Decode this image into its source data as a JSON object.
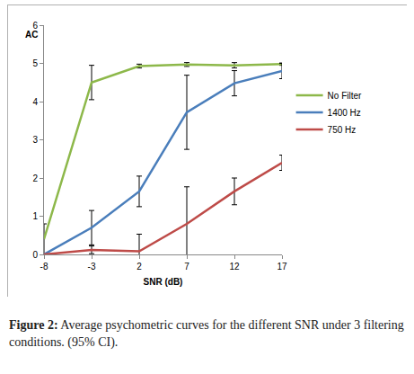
{
  "chart_data": {
    "type": "line",
    "y_label": "AC",
    "x_label": "SNR (dB)",
    "x": [
      -8,
      -3,
      2,
      7,
      12,
      17
    ],
    "xlim": [
      -8,
      17
    ],
    "xticks": [
      -8,
      -3,
      2,
      7,
      12,
      17
    ],
    "ylim": [
      0,
      6
    ],
    "yticks": [
      0,
      1,
      2,
      3,
      4,
      5,
      6
    ],
    "grid": false,
    "legend": "right",
    "series": [
      {
        "name": "No Filter",
        "color": "#8db84a",
        "values": [
          0.4,
          4.5,
          4.93,
          4.97,
          4.95,
          4.98
        ],
        "error": [
          0.4,
          0.45,
          0.05,
          0.05,
          0.07,
          0.03
        ]
      },
      {
        "name": "1400 Hz",
        "color": "#4a7ebb",
        "values": [
          0,
          0.7,
          1.65,
          3.72,
          4.48,
          4.8
        ],
        "error": [
          0,
          0.45,
          0.4,
          0.97,
          0.33,
          0.2
        ]
      },
      {
        "name": "750 Hz",
        "color": "#be4b48",
        "values": [
          0,
          0.12,
          0.08,
          0.8,
          1.65,
          2.4
        ],
        "error": [
          0,
          0.1,
          0.45,
          0.97,
          0.35,
          0.2
        ]
      }
    ],
    "caption": {
      "label": "Figure 2:",
      "text": "Average psychometric curves for the different SNR under 3 filtering conditions. (95% CI)."
    }
  }
}
